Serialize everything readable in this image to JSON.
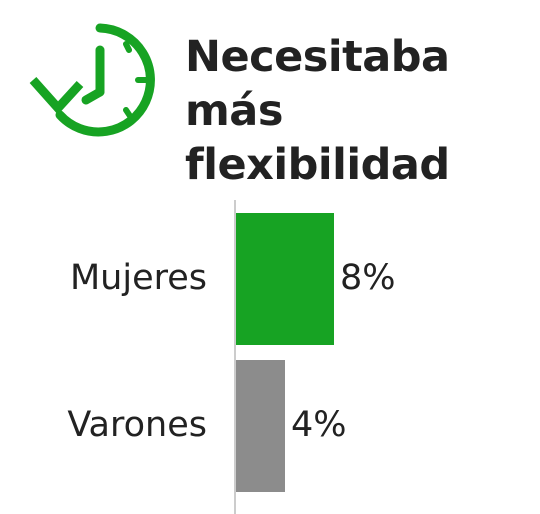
{
  "chart_data": {
    "type": "barh",
    "title": "Necesitaba más flexibilidad",
    "categories": [
      "Mujeres",
      "Varones"
    ],
    "values": [
      8,
      4
    ],
    "value_labels": [
      "8%",
      "4%"
    ],
    "colors": [
      "#17a323",
      "#8c8c8c"
    ],
    "xlim": [
      0,
      10
    ]
  }
}
